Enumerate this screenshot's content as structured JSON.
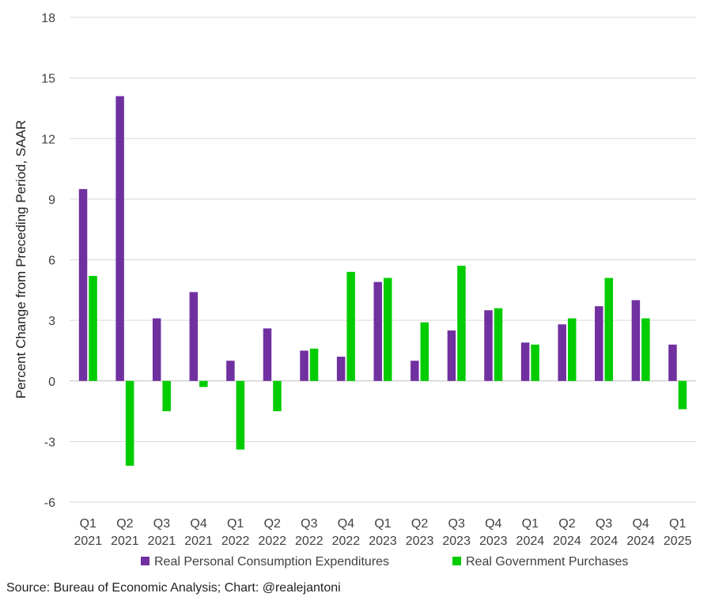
{
  "chart_data": {
    "type": "bar",
    "ylabel": "Percent Change from Preceding Period, SAAR",
    "ylim": [
      -6,
      18
    ],
    "yticks": [
      -6,
      -3,
      0,
      3,
      6,
      9,
      12,
      15,
      18
    ],
    "grid": true,
    "legend_position": "bottom",
    "categories": [
      [
        "Q1",
        "2021"
      ],
      [
        "Q2",
        "2021"
      ],
      [
        "Q3",
        "2021"
      ],
      [
        "Q4",
        "2021"
      ],
      [
        "Q1",
        "2022"
      ],
      [
        "Q2",
        "2022"
      ],
      [
        "Q3",
        "2022"
      ],
      [
        "Q4",
        "2022"
      ],
      [
        "Q1",
        "2023"
      ],
      [
        "Q2",
        "2023"
      ],
      [
        "Q3",
        "2023"
      ],
      [
        "Q4",
        "2023"
      ],
      [
        "Q1",
        "2024"
      ],
      [
        "Q2",
        "2024"
      ],
      [
        "Q3",
        "2024"
      ],
      [
        "Q4",
        "2024"
      ],
      [
        "Q1",
        "2025"
      ]
    ],
    "series": [
      {
        "name": "Real Personal Consumption Expenditures",
        "color": "#7030a0",
        "values": [
          9.5,
          14.1,
          3.1,
          4.4,
          1.0,
          2.6,
          1.5,
          1.2,
          4.9,
          1.0,
          2.5,
          3.5,
          1.9,
          2.8,
          3.7,
          4.0,
          1.8
        ]
      },
      {
        "name": "Real Government Purchases",
        "color": "#00cc00",
        "values": [
          5.2,
          -4.2,
          -1.5,
          -0.3,
          -3.4,
          -1.5,
          1.6,
          5.4,
          5.1,
          2.9,
          5.7,
          3.6,
          1.8,
          3.1,
          5.1,
          3.1,
          -1.4
        ]
      }
    ]
  },
  "source": "Source: Bureau of Economic Analysis; Chart: @realejantoni"
}
